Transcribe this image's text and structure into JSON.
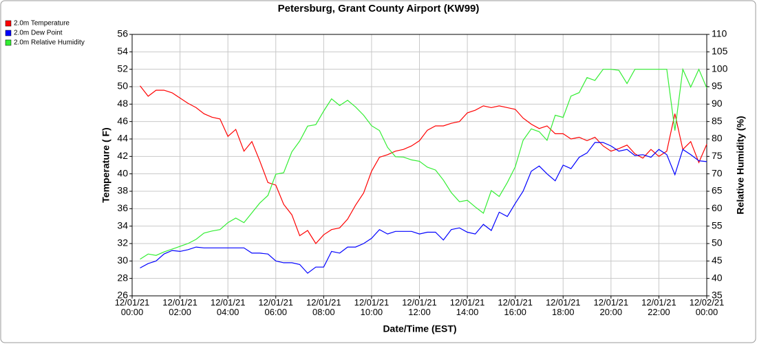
{
  "chart_data": {
    "type": "line",
    "title": "Petersburg, Grant County Airport (KW99)",
    "x_label": "Date/Time (EST)",
    "y_label": "Temperature ( F)",
    "y2_label": "Relative Humidity (%)",
    "x": [
      0.33,
      0.67,
      1,
      1.33,
      1.67,
      2,
      2.33,
      2.67,
      3,
      3.33,
      3.67,
      4,
      4.33,
      4.67,
      5,
      5.33,
      5.67,
      6,
      6.33,
      6.67,
      7,
      7.33,
      7.67,
      8,
      8.33,
      8.67,
      9,
      9.33,
      9.67,
      10,
      10.33,
      10.67,
      11,
      11.33,
      11.67,
      12,
      12.33,
      12.67,
      13,
      13.33,
      13.67,
      14,
      14.33,
      14.67,
      15,
      15.33,
      15.67,
      16,
      16.33,
      16.67,
      17,
      17.33,
      17.67,
      18,
      18.33,
      18.67,
      19,
      19.33,
      19.67,
      20,
      20.33,
      20.67,
      21,
      21.33,
      21.67,
      22,
      22.33,
      22.67,
      23,
      23.33,
      23.67,
      24
    ],
    "series": [
      {
        "name": "2.0m Temperature",
        "color": "#ff0000",
        "values": [
          50.1,
          48.9,
          49.6,
          49.6,
          49.3,
          48.7,
          48.1,
          47.6,
          46.9,
          46.5,
          46.3,
          44.3,
          45.1,
          42.6,
          43.7,
          41.5,
          39.0,
          38.7,
          36.5,
          35.3,
          32.9,
          33.5,
          32.0,
          33.0,
          33.6,
          33.8,
          34.8,
          36.4,
          37.8,
          40.3,
          41.9,
          42.2,
          42.6,
          42.8,
          43.2,
          43.8,
          45.0,
          45.5,
          45.5,
          45.8,
          46.0,
          47.0,
          47.3,
          47.8,
          47.6,
          47.8,
          47.6,
          47.4,
          46.4,
          45.7,
          45.2,
          45.5,
          44.6,
          44.6,
          44.0,
          44.2,
          43.8,
          44.2,
          43.2,
          42.6,
          42.9,
          43.3,
          42.3,
          41.8,
          42.8,
          42.0,
          42.6,
          46.9,
          42.8,
          43.7,
          41.3,
          43.4
        ]
      },
      {
        "name": "2.0m Dew Point",
        "color": "#0000ff",
        "values": [
          29.2,
          29.7,
          30.0,
          30.8,
          31.2,
          31.1,
          31.3,
          31.6,
          31.5,
          31.5,
          31.5,
          31.5,
          31.5,
          31.5,
          30.9,
          30.9,
          30.8,
          30.0,
          29.8,
          29.8,
          29.6,
          28.6,
          29.3,
          29.3,
          31.1,
          30.9,
          31.6,
          31.6,
          32.0,
          32.6,
          33.6,
          33.1,
          33.4,
          33.4,
          33.4,
          33.1,
          33.3,
          33.3,
          32.4,
          33.6,
          33.8,
          33.3,
          33.1,
          34.2,
          33.5,
          35.6,
          35.1,
          36.6,
          38.0,
          40.3,
          40.9,
          40.0,
          39.2,
          41.0,
          40.6,
          41.9,
          42.4,
          43.6,
          43.6,
          43.2,
          42.6,
          42.8,
          42.1,
          42.2,
          41.9,
          42.8,
          42.2,
          39.9,
          42.8,
          42.2,
          41.5,
          41.4
        ]
      },
      {
        "name": "2.0m Relative Humidity",
        "color": "#33ee33",
        "axis": "y2",
        "values": [
          45.5,
          47.0,
          46.6,
          47.6,
          48.4,
          49.2,
          50.0,
          51.2,
          53.0,
          53.6,
          54.0,
          56.0,
          57.3,
          56.0,
          58.8,
          61.6,
          63.8,
          69.9,
          70.3,
          76.3,
          79.4,
          83.7,
          84.1,
          88.0,
          91.5,
          89.6,
          91.1,
          89.2,
          86.8,
          83.8,
          82.4,
          77.6,
          74.9,
          74.8,
          74.0,
          73.6,
          71.9,
          71.1,
          68.2,
          64.6,
          62.0,
          62.4,
          60.5,
          58.7,
          65.2,
          63.5,
          67.5,
          72.0,
          79.6,
          82.9,
          82.1,
          79.6,
          86.8,
          86.2,
          92.3,
          93.3,
          97.6,
          96.8,
          100,
          100,
          99.7,
          95.9,
          100,
          100,
          100,
          100,
          100,
          82.4,
          100,
          94.9,
          100,
          94.6
        ]
      }
    ],
    "xlim": [
      0,
      24
    ],
    "xticks": [
      {
        "value": 0,
        "label": "12/01/21\n00:00"
      },
      {
        "value": 2,
        "label": "12/01/21\n02:00"
      },
      {
        "value": 4,
        "label": "12/01/21\n04:00"
      },
      {
        "value": 6,
        "label": "12/01/21\n06:00"
      },
      {
        "value": 8,
        "label": "12/01/21\n08:00"
      },
      {
        "value": 10,
        "label": "12/01/21\n10:00"
      },
      {
        "value": 12,
        "label": "12/01/21\n12:00"
      },
      {
        "value": 14,
        "label": "12/01/21\n14:00"
      },
      {
        "value": 16,
        "label": "12/01/21\n16:00"
      },
      {
        "value": 18,
        "label": "12/01/21\n18:00"
      },
      {
        "value": 20,
        "label": "12/01/21\n20:00"
      },
      {
        "value": 22,
        "label": "12/01/21\n22:00"
      },
      {
        "value": 24,
        "label": "12/02/21\n00:00"
      }
    ],
    "ylim": [
      26,
      56
    ],
    "yticks": [
      26,
      28,
      30,
      32,
      34,
      36,
      38,
      40,
      42,
      44,
      46,
      48,
      50,
      52,
      54,
      56
    ],
    "y2lim": [
      35,
      110
    ],
    "y2ticks": [
      35,
      40,
      45,
      50,
      55,
      60,
      65,
      70,
      75,
      80,
      85,
      90,
      95,
      100,
      105,
      110
    ],
    "grid": true,
    "legend": "top-left"
  }
}
